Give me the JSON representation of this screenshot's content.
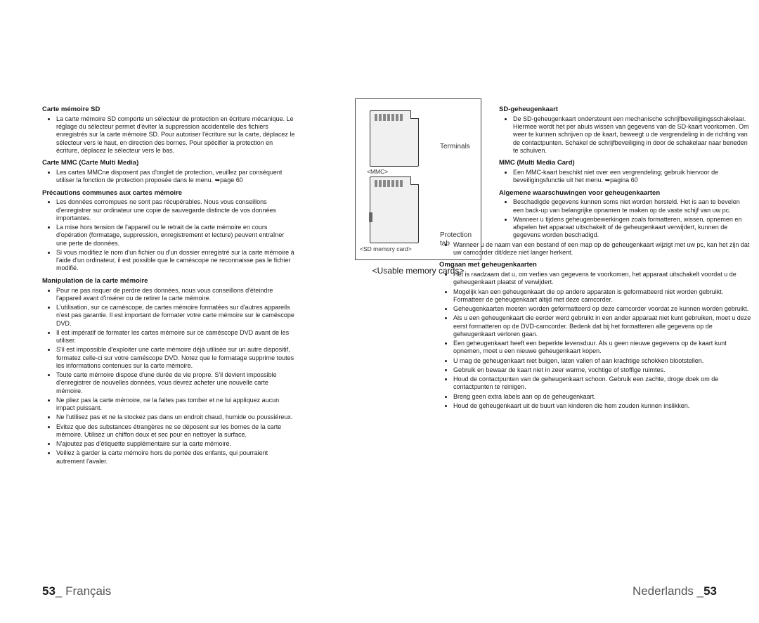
{
  "fr": {
    "h1": "Carte mémoire SD",
    "p1": "La carte mémoire SD comporte un sélecteur de protection en écriture mécanique. Le réglage du sélecteur permet d'éviter la suppression accidentelle des fichiers enregistrés sur la carte mémoire SD. Pour autoriser l'écriture sur la carte, déplacez le sélecteur vers le haut, en direction des bornes. Pour spécifier la protection en écriture, déplacez le sélecteur vers le bas.",
    "h2": "Carte MMC (Carte Multi Media)",
    "p2": "Les cartes MMCne disposent pas d'onglet de protection, veuillez par conséquent utiliser la fonction de protection proposée dans le menu. ➥page 60",
    "h3": "Précautions communes aux cartes mémoire",
    "c1": "Les données corrompues ne sont pas récupérables. Nous vous conseillons d'enregistrer sur ordinateur une copie de sauvegarde distincte de vos données importantes.",
    "c2": "La mise hors tension de l'appareil ou le retrait de la carte mémoire en cours d'opération (formatage, suppression, enregistrement et lecture) peuvent entraîner une perte de données.",
    "c3": "Si vous modifiez le nom d'un fichier ou d'un dossier enregistré sur la carte mémoire à l'aide d'un ordinateur, il est possible que le caméscope ne reconnaisse pas le fichier modifié.",
    "h4": "Manipulation de la carte mémoire",
    "m1": "Pour ne pas risquer de perdre des données, nous vous conseillons d'éteindre l'appareil avant d'insérer ou de retirer la carte mémoire.",
    "m2": "L'utilisation, sur ce caméscope, de cartes mémoire formatées sur d'autres appareils n'est pas garantie. Il est important de formater votre carte mémoire sur le caméscope DVD.",
    "m3": "Il est impératif de formater les cartes mémoire sur ce caméscope DVD avant de les utiliser.",
    "m4": "S'il est impossible d'exploiter une carte mémoire déjà utilisée sur un autre dispositif, formatez celle-ci sur votre caméscope DVD. Notez que le formatage supprime toutes les informations contenues sur la carte mémoire.",
    "m5": "Toute carte mémoire dispose d'une durée de vie propre. S'il devient impossible d'enregistrer de nouvelles données, vous devrez acheter une nouvelle carte mémoire.",
    "m6": "Ne pliez pas la carte mémoire, ne la faites pas tomber et ne lui appliquez aucun impact puissant.",
    "m7": "Ne l'utilisez pas et ne la stockez pas dans un endroit chaud, humide ou poussiéreux.",
    "m8": "Evitez que des substances étrangères ne se déposent sur les bornes de la carte mémoire. Utilisez un chiffon doux et sec pour en nettoyer la surface.",
    "m9": "N'ajoutez pas d'étiquette supplémentaire sur la carte mémoire.",
    "m10": "Veillez à garder la carte mémoire hors de portée des enfants, qui pourraient autrement l'avaler."
  },
  "nl": {
    "h1": "SD-geheugenkaart",
    "p1": "De SD-geheugenkaart ondersteunt een mechanische schrijfbeveiligingsschakelaar. Hiermee wordt het per abuis wissen van gegevens van de SD-kaart voorkomen. Om weer te kunnen schrijven op de kaart, beweegt u de vergrendeling in de richting van de contactpunten. Schakel de schrijfbeveiliging in door de schakelaar naar beneden te schuiven.",
    "h2": "MMC (Multi Media Card)",
    "p2": "Een MMC-kaart beschikt niet over een vergrendeling; gebruik hiervoor de beveiligingsfunctie uit het menu. ➥pagina 60",
    "h3": "Algemene waarschuwingen voor geheugenkaarten",
    "c1": "Beschadigde gegevens kunnen soms niet worden hersteld. Het is aan te bevelen een back-up van belangrijke opnamen te maken op de vaste schijf van uw pc.",
    "c2": "Wanneer u tijdens geheugenbewerkingen zoals formatteren, wissen, opnemen en afspelen het apparaat uitschakelt of de geheugenkaart verwijdert, kunnen de gegevens worden beschadigd.",
    "c3": "Wanneer u de naam van een bestand of een map op de geheugenkaart wijzigt met uw pc, kan het zijn dat uw camcorder dit/deze niet langer herkent.",
    "h4": "Omgaan met geheugenkaarten",
    "m1": "Het is raadzaam dat u, om verlies van gegevens te voorkomen, het apparaat uitschakelt voordat u de geheugenkaart plaatst of verwijdert.",
    "m2": "Mogelijk kan een geheugenkaart die op andere apparaten is geformatteerd niet worden gebruikt. Formatteer de geheugenkaart altijd met deze camcorder.",
    "m3": "Geheugenkaarten moeten worden geformatteerd op deze camcorder voordat ze kunnen worden gebruikt.",
    "m4": "Als u een geheugenkaart die eerder werd gebruikt in een ander apparaat niet kunt gebruiken, moet u deze eerst formatteren op de DVD-camcorder. Bedenk dat bij het formatteren alle gegevens op de geheugenkaart verloren gaan.",
    "m5": "Een geheugenkaart heeft een beperkte levensduur. Als u geen nieuwe gegevens op de kaart kunt opnemen, moet u een nieuwe geheugenkaart kopen.",
    "m6": "U mag de geheugenkaart niet buigen, laten vallen of aan krachtige schokken blootstellen.",
    "m7": "Gebruik en bewaar de kaart niet in zeer warme, vochtige of stoffige ruimtes.",
    "m8": "Houd de contactpunten van de geheugenkaart schoon. Gebruik een zachte, droge doek om de contactpunten te reinigen.",
    "m9": "Breng geen extra labels aan op de geheugenkaart.",
    "m10": "Houd de geheugenkaart uit de buurt van kinderen die hem zouden kunnen inslikken."
  },
  "diagram": {
    "mmc": "<MMC>",
    "sd": "<SD memory card>",
    "terminals": "Terminals",
    "protection": "Protection tab",
    "caption": "<Usable memory cards>"
  },
  "footer": {
    "left_num": "53",
    "left_lang": "_ Français",
    "right_lang": "Nederlands _",
    "right_num": "53"
  }
}
